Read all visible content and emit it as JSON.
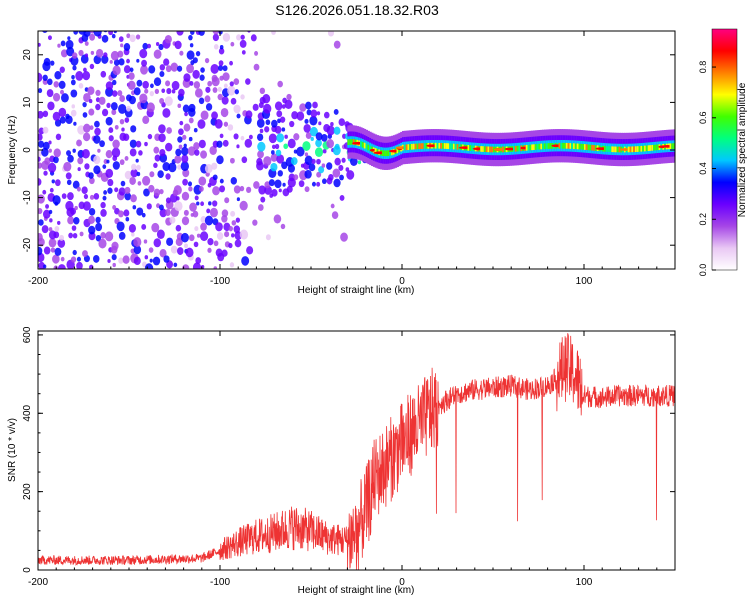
{
  "title": "S126.2026.051.18.32.R03",
  "chart_data": [
    {
      "type": "heatmap",
      "xlabel": "Height of straight line (km)",
      "ylabel": "Frequency (Hz)",
      "xlim": [
        -200,
        150
      ],
      "ylim": [
        -25,
        25
      ],
      "xticks": [
        -200,
        -100,
        0,
        100
      ],
      "yticks": [
        -20,
        -10,
        0,
        10,
        20
      ],
      "colorbar": {
        "label": "Normalized spectral amplitude",
        "range": [
          0,
          0.95
        ],
        "ticks": [
          0.0,
          0.2,
          0.4,
          0.6,
          0.8
        ],
        "tick_labels": [
          "0.0",
          "0.2",
          "0.4",
          "0.6",
          "0.8"
        ],
        "colors": [
          "#ffffff",
          "#e9c8f4",
          "#a646e6",
          "#6a00ff",
          "#0000ff",
          "#00c8ff",
          "#00ff80",
          "#40ff00",
          "#ffff00",
          "#ff8000",
          "#ff0000",
          "#ff0080"
        ]
      },
      "regions": [
        {
          "name": "noise",
          "x_range": [
            -200,
            -100
          ],
          "freq_range": [
            -25,
            25
          ],
          "amplitude": 0.05
        },
        {
          "name": "transition",
          "x_range": [
            -100,
            -30
          ],
          "freq_range": [
            -12,
            12
          ],
          "amplitude": 0.15
        },
        {
          "name": "signal",
          "x_range": [
            -30,
            150
          ],
          "center_freq_hz": 0.5,
          "bandwidth_hz": 3,
          "amplitude": 0.5
        }
      ]
    },
    {
      "type": "line",
      "xlabel": "Height of straight line (km)",
      "ylabel": "SNR (10 * v/v)",
      "xlim": [
        -200,
        150
      ],
      "ylim": [
        0,
        610
      ],
      "xticks": [
        -200,
        -100,
        0,
        100
      ],
      "yticks": [
        0,
        200,
        400,
        600
      ],
      "color": "#ee3333",
      "series": [
        {
          "name": "SNR",
          "x": [
            -200,
            -150,
            -110,
            -100,
            -90,
            -80,
            -70,
            -60,
            -50,
            -40,
            -30,
            -25,
            -20,
            -15,
            -10,
            -5,
            0,
            5,
            10,
            15,
            20,
            25,
            30,
            40,
            50,
            60,
            70,
            80,
            85,
            90,
            95,
            100,
            110,
            120,
            130,
            140,
            150
          ],
          "values": [
            25,
            25,
            30,
            50,
            70,
            85,
            95,
            110,
            100,
            80,
            75,
            95,
            150,
            230,
            260,
            290,
            320,
            350,
            370,
            400,
            420,
            435,
            450,
            460,
            465,
            470,
            460,
            470,
            490,
            520,
            500,
            445,
            440,
            445,
            445,
            445,
            445
          ]
        }
      ]
    }
  ]
}
